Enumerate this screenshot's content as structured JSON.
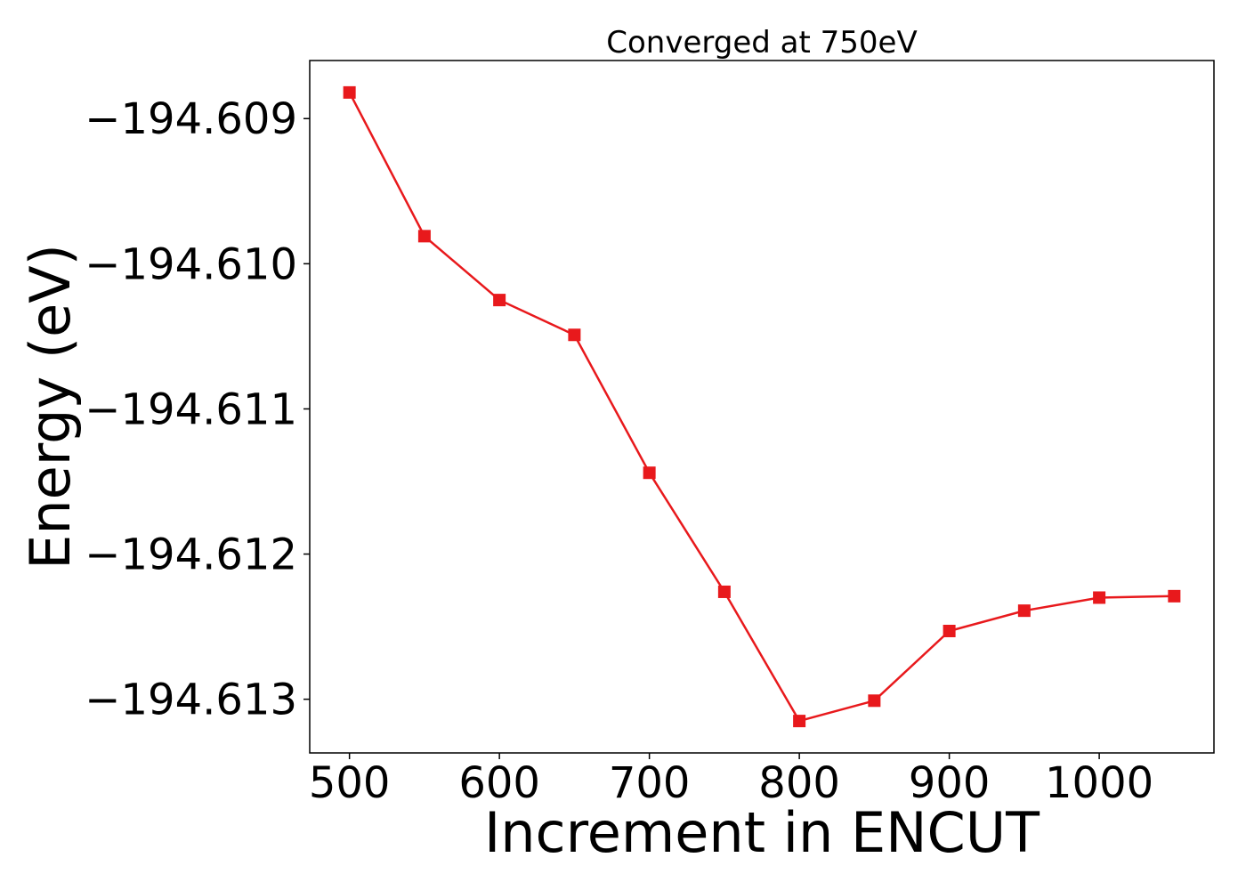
{
  "chart_data": {
    "type": "line",
    "title": "Converged at 750eV",
    "xlabel": "Increment in ENCUT",
    "ylabel": "Energy (eV)",
    "x": [
      500,
      550,
      600,
      650,
      700,
      750,
      800,
      850,
      900,
      950,
      1000,
      1050
    ],
    "series": [
      {
        "values": [
          -194.60882,
          -194.60981,
          -194.61025,
          -194.61049,
          -194.61144,
          -194.61226,
          -194.61315,
          -194.61301,
          -194.61253,
          -194.61239,
          -194.6123,
          -194.61229
        ],
        "color": "#e8191c",
        "marker": "square"
      }
    ],
    "xticks": [
      500,
      600,
      700,
      800,
      900,
      1000
    ],
    "xtick_labels": [
      "500",
      "600",
      "700",
      "800",
      "900",
      "1000"
    ],
    "yticks": [
      -194.609,
      -194.61,
      -194.611,
      -194.612,
      -194.613
    ],
    "ytick_labels": [
      "−194.609",
      "−194.610",
      "−194.611",
      "−194.612",
      "−194.613"
    ],
    "xlim": [
      473.5,
      1076.5
    ],
    "ylim": [
      -194.61337,
      -194.6086
    ],
    "grid": false,
    "legend": "none"
  }
}
